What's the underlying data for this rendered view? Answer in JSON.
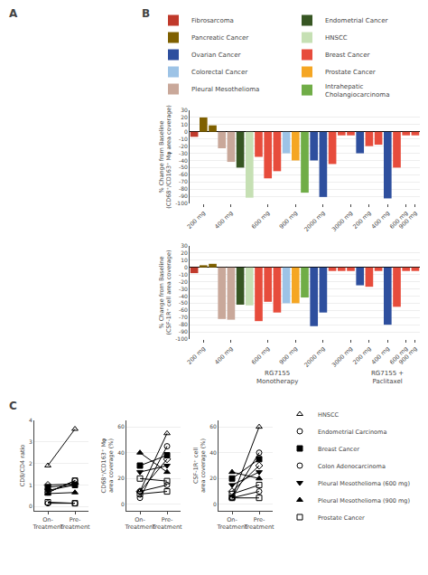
{
  "chart_data": [
    {
      "type": "blank",
      "title": "A"
    },
    {
      "type": "bar",
      "title": "B",
      "ylabel": "% Change from Baseline\n(CD68⁺/CD163⁺ Mφ area coverage)",
      "categories": [
        null,
        "200 mg",
        null,
        null,
        "400 mg",
        null,
        null,
        null,
        "600 mg",
        null,
        null,
        "900 mg",
        null,
        null,
        "2000 mg",
        null,
        null,
        "3000 mg",
        null,
        "200 mg",
        null,
        "400 mg",
        null,
        "600 mg",
        "900 mg"
      ],
      "ylim": [
        -100,
        30
      ],
      "yticks": [
        30,
        20,
        10,
        0,
        -10,
        -20,
        -30,
        -40,
        -50,
        -60,
        -70,
        -80,
        -90,
        -100
      ],
      "grid": true,
      "legend": "top",
      "series": [
        {
          "name": "Fibrosarcoma",
          "color": "#c0392b",
          "values": [
            -7,
            null,
            null,
            null,
            null,
            null,
            null,
            null,
            null,
            null,
            null,
            null,
            null,
            null,
            null,
            null,
            null,
            null,
            null,
            null,
            null,
            null,
            null,
            null,
            null
          ]
        },
        {
          "name": "Pancreatic Cancer",
          "color": "#7f6000",
          "values": [
            null,
            20,
            9,
            null,
            null,
            null,
            null,
            null,
            null,
            null,
            null,
            null,
            null,
            null,
            null,
            null,
            null,
            null,
            null,
            null,
            null,
            null,
            null,
            null,
            null
          ]
        },
        {
          "name": "Ovarian Cancer",
          "color": "#2e4f9e",
          "values": [
            null,
            null,
            null,
            null,
            null,
            null,
            null,
            null,
            null,
            null,
            null,
            null,
            null,
            -40,
            -91,
            null,
            null,
            null,
            -30,
            null,
            null,
            -93,
            null,
            null,
            null
          ]
        },
        {
          "name": "Colorectal Cancer",
          "color": "#9dc3e6",
          "values": [
            null,
            null,
            null,
            null,
            null,
            null,
            null,
            null,
            null,
            null,
            -30,
            null,
            null,
            null,
            null,
            null,
            null,
            null,
            null,
            null,
            null,
            null,
            null,
            null,
            null
          ]
        },
        {
          "name": "Pleural Mesothelioma",
          "color": "#c9a89a",
          "values": [
            null,
            null,
            null,
            -23,
            -42,
            null,
            null,
            null,
            null,
            null,
            null,
            null,
            null,
            null,
            null,
            null,
            null,
            null,
            null,
            null,
            null,
            null,
            null,
            null,
            null
          ]
        },
        {
          "name": "Endometrial Cancer",
          "color": "#375623",
          "values": [
            null,
            null,
            null,
            null,
            null,
            -50,
            null,
            null,
            null,
            null,
            null,
            null,
            null,
            null,
            null,
            null,
            null,
            null,
            null,
            null,
            null,
            null,
            null,
            null,
            null
          ]
        },
        {
          "name": "HNSCC",
          "color": "#c6e0b4",
          "values": [
            null,
            null,
            null,
            null,
            null,
            null,
            -92,
            null,
            null,
            null,
            null,
            null,
            null,
            null,
            null,
            null,
            null,
            null,
            null,
            null,
            null,
            null,
            null,
            null,
            null
          ]
        },
        {
          "name": "Breast Cancer",
          "color": "#e74c3c",
          "values": [
            null,
            null,
            null,
            null,
            null,
            null,
            null,
            -35,
            -65,
            -55,
            null,
            null,
            null,
            null,
            null,
            -45,
            -5,
            -5,
            null,
            -20,
            -18,
            null,
            -50,
            -5,
            -5
          ]
        },
        {
          "name": "Prostate Cancer",
          "color": "#f5a623",
          "values": [
            null,
            null,
            null,
            null,
            null,
            null,
            null,
            null,
            null,
            null,
            null,
            -40,
            null,
            null,
            null,
            null,
            null,
            null,
            null,
            null,
            null,
            null,
            null,
            null,
            null
          ]
        },
        {
          "name": "Intrahepatic\nCholangiocarcinoma",
          "color": "#70ad47",
          "values": [
            null,
            null,
            null,
            null,
            null,
            null,
            null,
            null,
            null,
            null,
            null,
            null,
            -85,
            null,
            null,
            null,
            null,
            null,
            null,
            null,
            null,
            null,
            null,
            null,
            null
          ]
        }
      ]
    },
    {
      "type": "bar",
      "ylabel": "% Change from Baseline\n(CSF-1R⁺ cell area coverage)",
      "categories": [
        null,
        "200 mg",
        null,
        null,
        "400 mg",
        null,
        null,
        null,
        "600 mg",
        null,
        null,
        "900 mg",
        null,
        null,
        "2000 mg",
        null,
        null,
        "3000 mg",
        null,
        "200 mg",
        null,
        "400 mg",
        null,
        "600 mg",
        "900 mg"
      ],
      "ylim": [
        -100,
        30
      ],
      "yticks": [
        30,
        20,
        10,
        0,
        -10,
        -20,
        -30,
        -40,
        -50,
        -60,
        -70,
        -80,
        -90,
        -100
      ],
      "grid": true,
      "annotations": [
        {
          "text": "RG7155\nMonotherapy",
          "x": 9
        },
        {
          "text": "RG7155 +\nPaclitaxel",
          "x": 21
        }
      ],
      "series": [
        {
          "name": "Fibrosarcoma",
          "color": "#c0392b",
          "values": [
            -8,
            null,
            null,
            null,
            null,
            null,
            null,
            null,
            null,
            null,
            null,
            null,
            null,
            null,
            null,
            null,
            null,
            null,
            null,
            null,
            null,
            null,
            null,
            null,
            null
          ]
        },
        {
          "name": "Pancreatic Cancer",
          "color": "#7f6000",
          "values": [
            null,
            3,
            5,
            null,
            null,
            null,
            null,
            null,
            null,
            null,
            null,
            null,
            null,
            null,
            null,
            null,
            null,
            null,
            null,
            null,
            null,
            null,
            null,
            null,
            null
          ]
        },
        {
          "name": "Ovarian Cancer",
          "color": "#2e4f9e",
          "values": [
            null,
            null,
            null,
            null,
            null,
            null,
            null,
            null,
            null,
            null,
            null,
            null,
            null,
            -82,
            -63,
            null,
            null,
            null,
            -25,
            null,
            null,
            -80,
            null,
            null,
            null
          ]
        },
        {
          "name": "Colorectal Cancer",
          "color": "#9dc3e6",
          "values": [
            null,
            null,
            null,
            null,
            null,
            null,
            null,
            null,
            null,
            null,
            -50,
            null,
            null,
            null,
            null,
            null,
            null,
            null,
            null,
            null,
            null,
            null,
            null,
            null,
            null
          ]
        },
        {
          "name": "Pleural Mesothelioma",
          "color": "#c9a89a",
          "values": [
            null,
            null,
            null,
            -72,
            -73,
            null,
            null,
            null,
            null,
            null,
            null,
            null,
            null,
            null,
            null,
            null,
            null,
            null,
            null,
            null,
            null,
            null,
            null,
            null,
            null
          ]
        },
        {
          "name": "Endometrial Cancer",
          "color": "#375623",
          "values": [
            null,
            null,
            null,
            null,
            null,
            -52,
            null,
            null,
            null,
            null,
            null,
            null,
            null,
            null,
            null,
            null,
            null,
            null,
            null,
            null,
            null,
            null,
            null,
            null,
            null
          ]
        },
        {
          "name": "HNSCC",
          "color": "#c6e0b4",
          "values": [
            null,
            null,
            null,
            null,
            null,
            null,
            -53,
            null,
            null,
            null,
            null,
            null,
            null,
            null,
            null,
            null,
            null,
            null,
            null,
            null,
            null,
            null,
            null,
            null,
            null
          ]
        },
        {
          "name": "Breast Cancer",
          "color": "#e74c3c",
          "values": [
            null,
            null,
            null,
            null,
            null,
            null,
            null,
            -75,
            -48,
            -63,
            null,
            null,
            null,
            null,
            null,
            -5,
            -5,
            -5,
            null,
            -27,
            -5,
            null,
            -55,
            -5,
            -5
          ]
        },
        {
          "name": "Prostate Cancer",
          "color": "#f5a623",
          "values": [
            null,
            null,
            null,
            null,
            null,
            null,
            null,
            null,
            null,
            null,
            null,
            -50,
            null,
            null,
            null,
            null,
            null,
            null,
            null,
            null,
            null,
            null,
            null,
            null,
            null
          ]
        },
        {
          "name": "Intrahepatic\nCholangiocarcinoma",
          "color": "#70ad47",
          "values": [
            null,
            null,
            null,
            null,
            null,
            null,
            null,
            null,
            null,
            null,
            null,
            null,
            -42,
            null,
            null,
            null,
            null,
            null,
            null,
            null,
            null,
            null,
            null,
            null,
            null
          ]
        }
      ]
    },
    {
      "type": "line",
      "title": "C",
      "ylabel": "CD8/CD4 ratio",
      "categories": [
        "On-\nTreatment",
        "Pre-\nTreatment"
      ],
      "ylim": [
        -0.2,
        4.0
      ],
      "yticks": [
        0,
        1,
        2,
        3,
        4
      ],
      "grid": true,
      "color": "black",
      "series": [
        {
          "marker": "triangle-up-open",
          "values": [
            1.9,
            3.6
          ]
        },
        {
          "marker": "circle-open",
          "values": [
            0.65,
            1.2
          ]
        },
        {
          "marker": "square",
          "values": [
            0.9,
            1.0
          ]
        },
        {
          "marker": "diamond-open",
          "values": [
            1.0,
            1.05
          ]
        },
        {
          "marker": "triangle-down",
          "values": [
            0.75,
            1.0
          ]
        },
        {
          "marker": "triangle-up",
          "values": [
            0.6,
            0.65
          ]
        },
        {
          "marker": "square-open",
          "values": [
            0.65,
            1.2
          ]
        },
        {
          "marker": "circle-open",
          "values": [
            0.15,
            0.15
          ]
        },
        {
          "marker": "square-open",
          "values": [
            0.2,
            0.15
          ]
        }
      ]
    },
    {
      "type": "line",
      "ylabel": "CD68⁺/CD163⁺ Mφ\narea coverage (%)",
      "categories": [
        "On-\nTreatment",
        "Pre-\nTreatment"
      ],
      "ylim": [
        -5,
        65
      ],
      "yticks": [
        0,
        20,
        40,
        60
      ],
      "grid": true,
      "color": "black",
      "series": [
        {
          "marker": "triangle-up-open",
          "values": [
            10,
            55
          ]
        },
        {
          "marker": "circle-open",
          "values": [
            5,
            45
          ]
        },
        {
          "marker": "square",
          "values": [
            30,
            38
          ]
        },
        {
          "marker": "diamond-open",
          "values": [
            10,
            35
          ]
        },
        {
          "marker": "triangle-down",
          "values": [
            25,
            30
          ]
        },
        {
          "marker": "triangle-up",
          "values": [
            40,
            25
          ]
        },
        {
          "marker": "square-open",
          "values": [
            20,
            18
          ]
        },
        {
          "marker": "circle-open",
          "values": [
            10,
            15
          ]
        },
        {
          "marker": "square-open",
          "values": [
            8,
            10
          ]
        }
      ]
    },
    {
      "type": "line",
      "ylabel": "CSF-1R⁺ cell\narea coverage (%)",
      "categories": [
        "On-\nTreatment",
        "Pre-\nTreatment"
      ],
      "ylim": [
        -5,
        65
      ],
      "yticks": [
        0,
        20,
        40,
        60
      ],
      "grid": true,
      "color": "black",
      "series": [
        {
          "marker": "triangle-up-open",
          "values": [
            5,
            60
          ]
        },
        {
          "marker": "circle-open",
          "values": [
            5,
            40
          ]
        },
        {
          "marker": "square",
          "values": [
            20,
            35
          ]
        },
        {
          "marker": "diamond-open",
          "values": [
            10,
            30
          ]
        },
        {
          "marker": "triangle-down",
          "values": [
            15,
            25
          ]
        },
        {
          "marker": "triangle-up",
          "values": [
            25,
            20
          ]
        },
        {
          "marker": "square-open",
          "values": [
            8,
            15
          ]
        },
        {
          "marker": "circle-open",
          "values": [
            5,
            10
          ]
        },
        {
          "marker": "square-open",
          "values": [
            5,
            5
          ]
        }
      ]
    },
    {
      "type": "legend",
      "color": "black",
      "series": [
        {
          "name": "HNSCC",
          "marker": "triangle-up-open"
        },
        {
          "name": "Endometrial Carcinoma",
          "marker": "circle-open"
        },
        {
          "name": "Breast Cancer",
          "marker": "square"
        },
        {
          "name": "Colon Adenocarcinoma",
          "marker": "circle-open"
        },
        {
          "name": "Pleural Mesothelioma (600 mg)",
          "marker": "triangle-down"
        },
        {
          "name": "Pleural Mesothelioma (900 mg)",
          "marker": "triangle-up"
        },
        {
          "name": "Prostate Cancer",
          "marker": "square-open"
        }
      ]
    }
  ]
}
